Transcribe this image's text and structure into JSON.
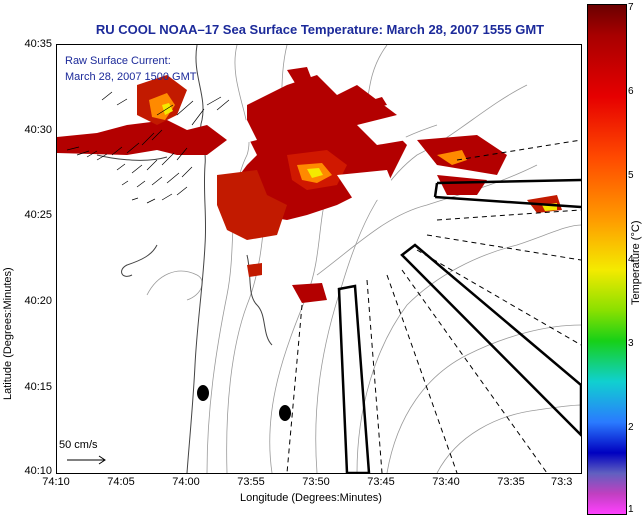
{
  "title": "RU COOL  NOAA–17  Sea Surface Temperature:  March 28, 2007 1555 GMT",
  "current_label": "Raw Surface Current:",
  "current_time": "March 28, 2007 1500 GMT",
  "scale_label": "50 cm/s",
  "y_axis": {
    "label": "Latitude (Degrees:Minutes)",
    "ticks": [
      "40:35",
      "40:30",
      "40:25",
      "40:20",
      "40:15",
      "40:10"
    ]
  },
  "x_axis": {
    "label": "Longitude (Degrees:Minutes)",
    "ticks": [
      "74:10",
      "74:05",
      "74:00",
      "73:55",
      "73:50",
      "73:45",
      "73:40",
      "73:35",
      "73:3"
    ]
  },
  "colorbar": {
    "label": "Temperature (°C)",
    "ticks": [
      "7",
      "6",
      "5",
      "4",
      "3",
      "2",
      "1"
    ],
    "range": [
      1,
      7
    ]
  },
  "colors": {
    "title": "#1c2a9a",
    "sst_warm": "#b30000",
    "sst_hot": "#ff7a00",
    "sst_peak": "#f4ea00",
    "bathymetry": "#9a9a9a"
  }
}
